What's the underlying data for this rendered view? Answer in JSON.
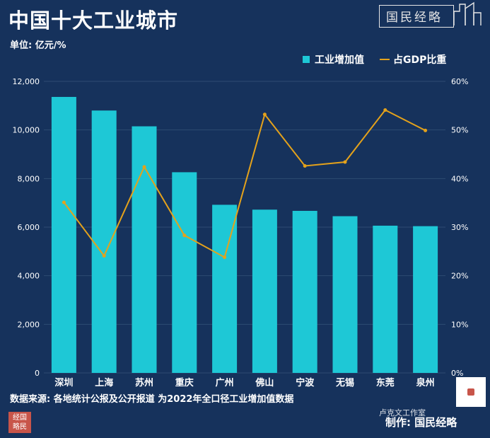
{
  "header": {
    "title": "中国十大工业城市",
    "unit": "单位: 亿元/%",
    "brand": "国民经略"
  },
  "footer": {
    "source": "数据来源: 各地统计公报及公开报道 为2022年全口径工业增加值数据",
    "credit": "制作: 国民经略",
    "credit_watermark": "卢克文工作室",
    "seal_line1": "经国",
    "seal_line2": "略民"
  },
  "colors": {
    "background": "#16325c",
    "bar": "#1ec8d6",
    "line": "#e4a21b",
    "grid": "#2e4b72"
  },
  "chart_data": {
    "type": "bar",
    "categories": [
      "深圳",
      "上海",
      "苏州",
      "重庆",
      "广州",
      "佛山",
      "宁波",
      "无锡",
      "东莞",
      "泉州"
    ],
    "series": [
      {
        "name": "工业增加值",
        "type": "bar",
        "axis": "left",
        "values": [
          11360,
          10800,
          10150,
          8260,
          6920,
          6720,
          6670,
          6450,
          6060,
          6040
        ]
      },
      {
        "name": "占GDP比重",
        "type": "line",
        "axis": "right",
        "values": [
          35.1,
          24.1,
          42.4,
          28.3,
          23.8,
          53.2,
          42.6,
          43.4,
          54.1,
          49.9
        ]
      }
    ],
    "left_axis": {
      "min": 0,
      "max": 12000,
      "ticks": [
        0,
        2000,
        4000,
        6000,
        8000,
        10000,
        12000
      ],
      "tick_labels": [
        "0",
        "2,000",
        "4,000",
        "6,000",
        "8,000",
        "10,000",
        "12,000"
      ]
    },
    "right_axis": {
      "min": 0,
      "max": 60,
      "ticks": [
        0,
        10,
        20,
        30,
        40,
        50,
        60
      ],
      "tick_labels": [
        "0%",
        "10%",
        "20%",
        "30%",
        "40%",
        "50%",
        "60%"
      ]
    },
    "legend_position": "top-right",
    "grid": true
  }
}
